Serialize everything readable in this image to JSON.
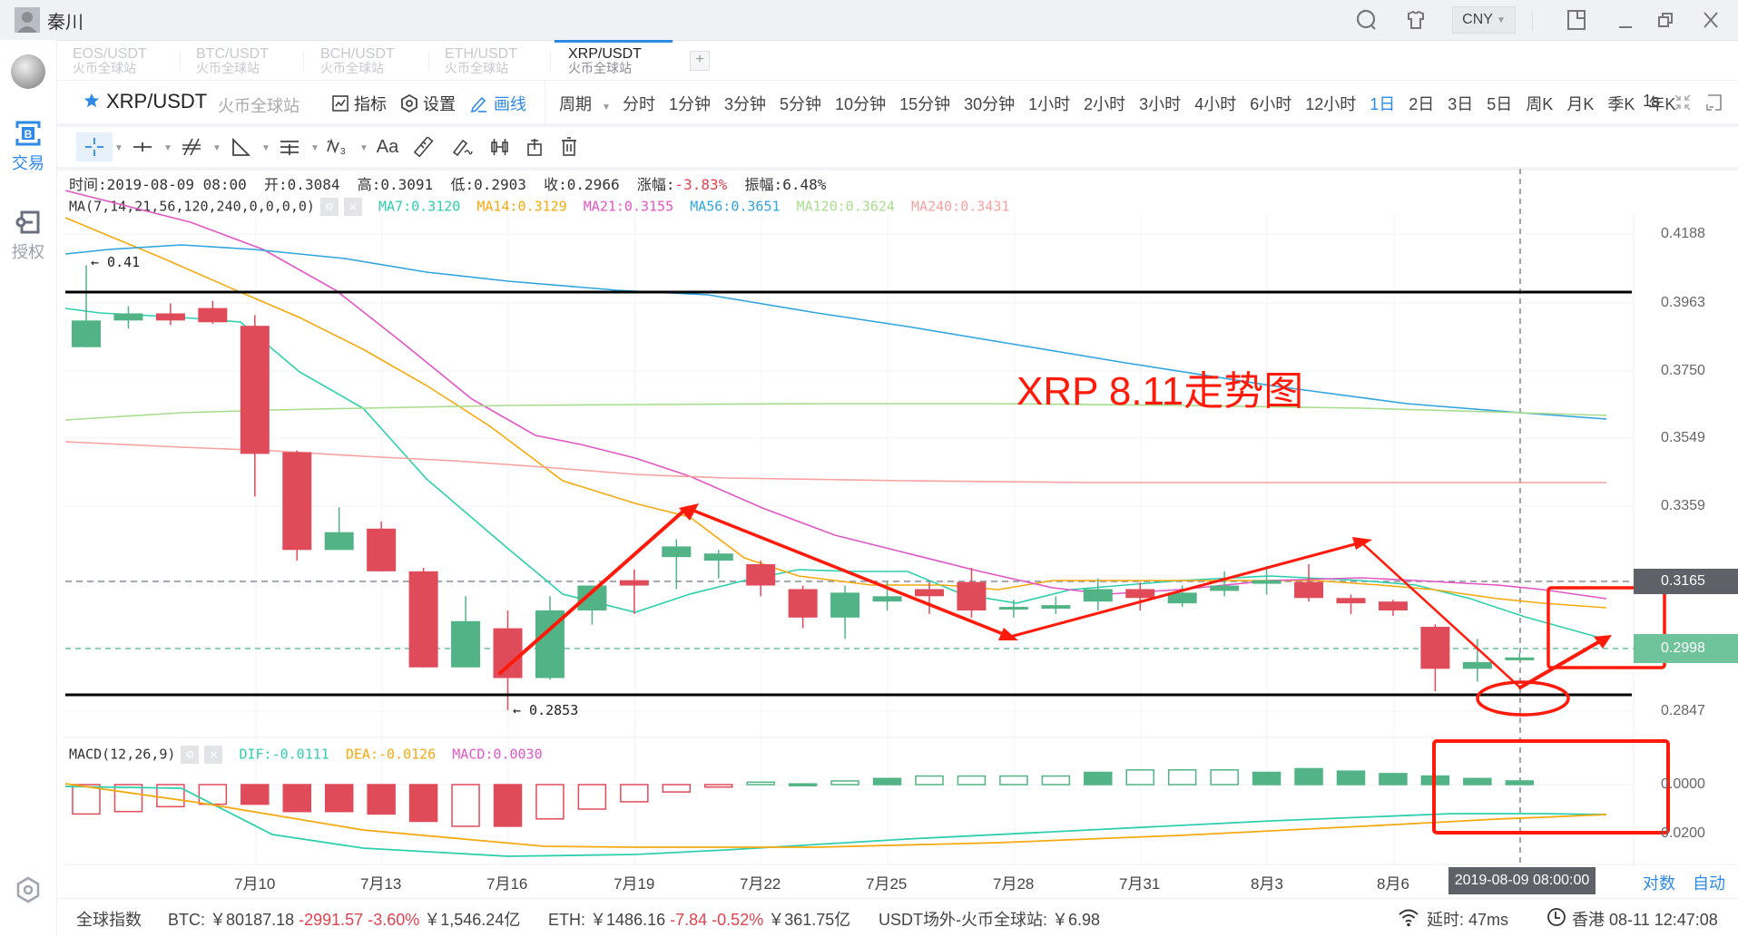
{
  "titlebar": {
    "user_name": "秦川",
    "currency": "CNY",
    "icons": [
      "search-icon",
      "skin-icon",
      "layout-icon",
      "minimize-icon",
      "restore-icon",
      "close-icon"
    ]
  },
  "sidebar": {
    "items": [
      {
        "label": "交易",
        "icon": "trade-icon",
        "active": true
      },
      {
        "label": "授权",
        "icon": "key-icon",
        "active": false
      }
    ]
  },
  "tabs": [
    {
      "symbol": "EOS/USDT",
      "exchange": "火币全球站",
      "active": false
    },
    {
      "symbol": "BTC/USDT",
      "exchange": "火币全球站",
      "active": false
    },
    {
      "symbol": "BCH/USDT",
      "exchange": "火币全球站",
      "active": false
    },
    {
      "symbol": "ETH/USDT",
      "exchange": "火币全球站",
      "active": false
    },
    {
      "symbol": "XRP/USDT",
      "exchange": "火币全球站",
      "active": true
    }
  ],
  "add_tab_label": "+",
  "symbol_bar": {
    "symbol": "XRP/USDT",
    "exchange": "火币全球站",
    "indicator_label": "指标",
    "settings_label": "设置",
    "draw_label": "画线",
    "period_label": "周期",
    "periods": [
      "分时",
      "1分钟",
      "3分钟",
      "5分钟",
      "10分钟",
      "15分钟",
      "30分钟",
      "1小时",
      "2小时",
      "3小时",
      "4小时",
      "6小时",
      "12小时",
      "1日",
      "2日",
      "3日",
      "5日",
      "周K",
      "月K",
      "季K",
      "年K"
    ],
    "active_period": "1日",
    "refresh_label": "1s"
  },
  "draw_tools": [
    "crosshair-tool",
    "horizontal-line-tool",
    "parallel-line-tool",
    "triangle-tool",
    "fib-tool",
    "wave-tool",
    "text-tool",
    "measure-tool",
    "eraser-tool",
    "candle-tool",
    "lock-tool",
    "delete-tool"
  ],
  "text_tool_label": "Aa",
  "info": {
    "time_label": "时间:",
    "time": "2019-08-09 08:00",
    "open_label": "开:",
    "open": "0.3084",
    "high_label": "高:",
    "high": "0.3091",
    "low_label": "低:",
    "low": "0.2903",
    "close_label": "收:",
    "close": "0.2966",
    "change_label": "涨幅:",
    "change": "-3.83%",
    "amplitude_label": "振幅:",
    "amplitude": "6.48%"
  },
  "ma": {
    "label": "MA(7,14,21,56,120,240,0,0,0,0)",
    "values": [
      {
        "text": "MA7:0.3120",
        "color": "#2fcfae"
      },
      {
        "text": "MA14:0.3129",
        "color": "#f6a90f"
      },
      {
        "text": "MA21:0.3155",
        "color": "#e356c4"
      },
      {
        "text": "MA56:0.3651",
        "color": "#2fa4e0"
      },
      {
        "text": "MA120:0.3624",
        "color": "#a9dc8e"
      },
      {
        "text": "MA240:0.3431",
        "color": "#f7a1a1"
      }
    ]
  },
  "macd": {
    "label": "MACD(12,26,9)",
    "dif": "DIF:-0.0111",
    "dif_color": "#2fcfae",
    "dea": "DEA:-0.0126",
    "dea_color": "#f6a90f",
    "macd": "MACD:0.0030",
    "macd_color": "#e356c4",
    "axis": [
      "0.0000",
      "0.0200"
    ]
  },
  "price_axis": [
    "0.4188",
    "0.3963",
    "0.3750",
    "0.3549",
    "0.3359",
    "0.2847"
  ],
  "price_tags": {
    "last": "0.3165",
    "current": "0.2998"
  },
  "marks": {
    "high": "← 0.41",
    "low": "← 0.2853"
  },
  "date_axis": [
    "7月10",
    "7月13",
    "7月16",
    "7月19",
    "7月22",
    "7月25",
    "7月28",
    "7月31",
    "8月3",
    "8月6"
  ],
  "crosshair_date": "2019-08-09 08:00:00",
  "axis_modes": [
    "对数",
    "自动"
  ],
  "annotation": "XRP 8.11走势图",
  "colors": {
    "up": "#52b486",
    "down": "#e04b5a",
    "accent": "#2e8ae6",
    "annotation": "#ff1a0a"
  },
  "status": {
    "global_index_label": "全球指数",
    "btc_label": "BTC:",
    "btc_price": "￥80187.18",
    "btc_change": "-2991.57",
    "btc_pct": "-3.60%",
    "btc_vol": "￥1,546.24亿",
    "eth_label": "ETH:",
    "eth_price": "￥1486.16",
    "eth_change": "-7.84",
    "eth_pct": "-0.52%",
    "eth_vol": "￥361.75亿",
    "usdt_label": "USDT场外-火币全球站:",
    "usdt_price": "￥6.98",
    "latency_label": "延时:",
    "latency": "47ms",
    "clock": "香港 08-11 12:47:08"
  },
  "chart_data": {
    "type": "candlestick",
    "title": "XRP/USDT 1日",
    "annotation": "XRP 8.11走势图",
    "categories": [
      "7/8",
      "7/9",
      "7/10",
      "7/11",
      "7/12",
      "7/13",
      "7/14",
      "7/15",
      "7/16",
      "7/17",
      "7/18",
      "7/19",
      "7/20",
      "7/21",
      "7/22",
      "7/23",
      "7/24",
      "7/25",
      "7/26",
      "7/27",
      "7/28",
      "7/29",
      "7/30",
      "7/31",
      "8/1",
      "8/2",
      "8/3",
      "8/4",
      "8/5",
      "8/6",
      "8/7",
      "8/8",
      "8/9",
      "8/10",
      "8/11"
    ],
    "ohlc": [
      [
        0.387,
        0.3945,
        0.387,
        0.41
      ],
      [
        0.3945,
        0.3965,
        0.3922,
        0.3985
      ],
      [
        0.3965,
        0.3945,
        0.3932,
        0.3993
      ],
      [
        0.398,
        0.394,
        0.3935,
        0.4
      ],
      [
        0.393,
        0.357,
        0.345,
        0.396
      ],
      [
        0.3575,
        0.33,
        0.327,
        0.358
      ],
      [
        0.33,
        0.335,
        0.33,
        0.342
      ],
      [
        0.336,
        0.324,
        0.324,
        0.338
      ],
      [
        0.324,
        0.297,
        0.297,
        0.325
      ],
      [
        0.297,
        0.31,
        0.3,
        0.317
      ],
      [
        0.308,
        0.294,
        0.285,
        0.313
      ],
      [
        0.294,
        0.313,
        0.2935,
        0.317
      ],
      [
        0.313,
        0.32,
        0.309,
        0.319
      ],
      [
        0.3215,
        0.32,
        0.312,
        0.3245
      ],
      [
        0.328,
        0.331,
        0.319,
        0.333
      ],
      [
        0.327,
        0.329,
        0.322,
        0.33
      ],
      [
        0.326,
        0.32,
        0.317,
        0.327
      ],
      [
        0.319,
        0.311,
        0.308,
        0.32
      ],
      [
        0.311,
        0.318,
        0.305,
        0.32
      ],
      [
        0.3155,
        0.317,
        0.313,
        0.321
      ],
      [
        0.319,
        0.317,
        0.312,
        0.321
      ],
      [
        0.321,
        0.313,
        0.311,
        0.325
      ],
      [
        0.314,
        0.314,
        0.311,
        0.316
      ],
      [
        0.3135,
        0.3145,
        0.312,
        0.317
      ],
      [
        0.3155,
        0.319,
        0.313,
        0.322
      ],
      [
        0.319,
        0.3165,
        0.313,
        0.321
      ],
      [
        0.315,
        0.318,
        0.314,
        0.32
      ],
      [
        0.3185,
        0.32,
        0.317,
        0.324
      ],
      [
        0.3205,
        0.3215,
        0.3175,
        0.3255
      ],
      [
        0.321,
        0.3165,
        0.3155,
        0.326
      ],
      [
        0.3165,
        0.315,
        0.312,
        0.3175
      ],
      [
        0.3155,
        0.313,
        0.3115,
        0.316
      ],
      [
        0.3084,
        0.2966,
        0.2903,
        0.3091
      ],
      [
        0.2966,
        0.2985,
        0.293,
        0.305
      ],
      [
        0.299,
        0.2998,
        0.299,
        0.301
      ]
    ],
    "ohlc_format": [
      "open",
      "close",
      "low",
      "high"
    ],
    "ylim": [
      0.28,
      0.425
    ],
    "yticks": [
      0.4188,
      0.3963,
      0.375,
      0.3549,
      0.3359,
      0.2847
    ],
    "last_price": 0.2998,
    "marked_high": 0.41,
    "marked_low": 0.2853,
    "horizontal_lines": [
      0.3965,
      0.288
    ],
    "ma_lines": [
      {
        "name": "MA7",
        "last": 0.312
      },
      {
        "name": "MA14",
        "last": 0.3129
      },
      {
        "name": "MA21",
        "last": 0.3155
      },
      {
        "name": "MA56",
        "last": 0.3651
      },
      {
        "name": "MA120",
        "last": 0.3624
      },
      {
        "name": "MA240",
        "last": 0.3431
      }
    ],
    "macd_hist": [
      -0.012,
      -0.011,
      -0.009,
      -0.008,
      -0.008,
      -0.011,
      -0.011,
      -0.012,
      -0.015,
      -0.017,
      -0.017,
      -0.014,
      -0.01,
      -0.007,
      -0.003,
      -0.001,
      0.001,
      0.0003,
      0.0015,
      0.0025,
      0.0035,
      0.0035,
      0.0035,
      0.0035,
      0.005,
      0.006,
      0.006,
      0.006,
      0.005,
      0.0065,
      0.0055,
      0.0045,
      0.0035,
      0.0025,
      0.0015
    ],
    "macd_ylim": [
      -0.03,
      0.008
    ],
    "xlabel": "",
    "ylabel": ""
  }
}
